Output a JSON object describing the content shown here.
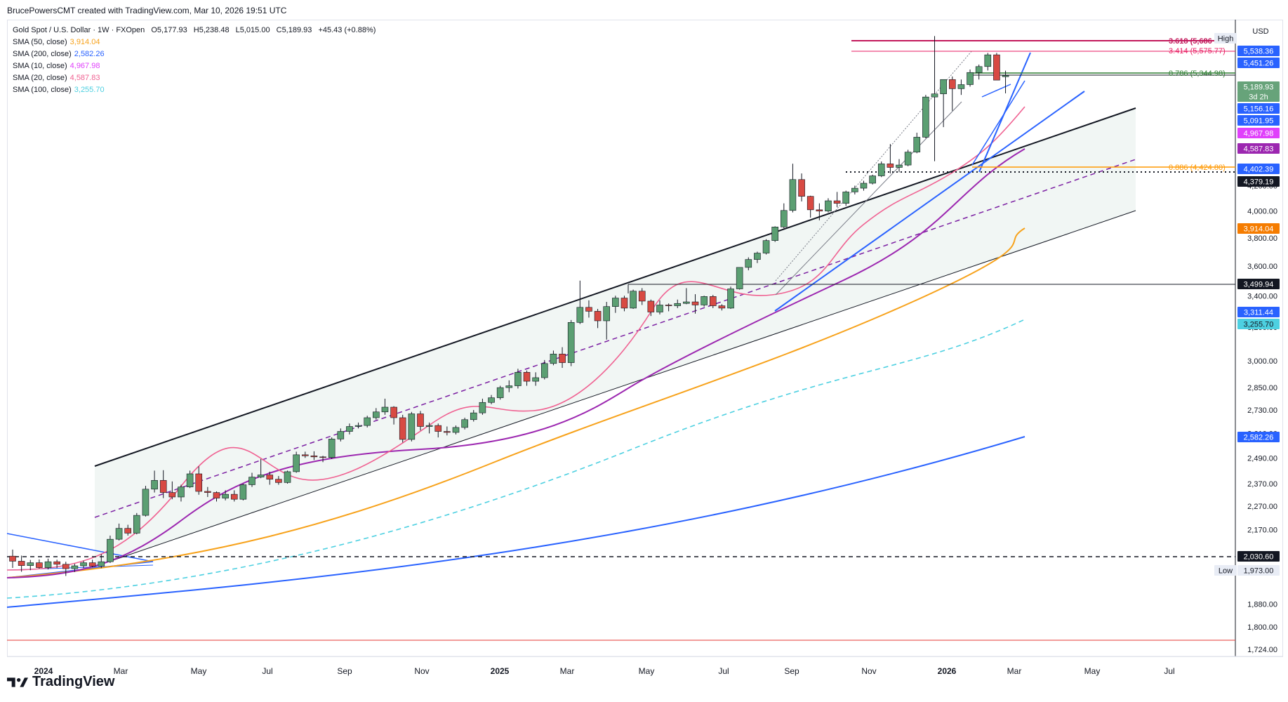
{
  "header": {
    "credit": "BrucePowersCMT created with TradingView.com, Mar 10, 2026 19:51 UTC"
  },
  "legend": {
    "symbol": "Gold Spot / U.S. Dollar · 1W · FXOpen",
    "ohlc": {
      "o": "O5,177.93",
      "h": "H5,238.48",
      "l": "L5,015.00",
      "c": "C5,189.93",
      "chg": "+45.43 (+0.88%)"
    },
    "sma": [
      {
        "label": "SMA (50, close)",
        "value": "3,914.04",
        "color": "#f7a21b"
      },
      {
        "label": "SMA (200, close)",
        "value": "2,582.26",
        "color": "#2962ff"
      },
      {
        "label": "SMA (10, close)",
        "value": "4,967.98",
        "color": "#e040fb"
      },
      {
        "label": "SMA (20, close)",
        "value": "4,587.83",
        "color": "#f06292"
      },
      {
        "label": "SMA (100, close)",
        "value": "3,255.70",
        "color": "#4dd0e1"
      }
    ]
  },
  "brand": {
    "name": "TradingView"
  },
  "chart_data": {
    "type": "candlestick",
    "title": "Gold Spot / U.S. Dollar",
    "timeframe": "1W",
    "currency": "USD",
    "y_scale": "log",
    "ylim": [
      1724,
      5700
    ],
    "y_ticks": [
      1724,
      1800,
      1880,
      1973,
      2070,
      2170,
      2270,
      2370,
      2490,
      2610,
      2730,
      2850,
      3000,
      3200,
      3400,
      3600,
      3800,
      4000,
      4200
    ],
    "y_tick_labels": [
      "1,724.00",
      "1,800.00",
      "1,880.00",
      "",
      "2,070.00",
      "2,170.00",
      "2,270.00",
      "2,370.00",
      "2,490.00",
      "2,610.00",
      "2,730.00",
      "2,850.00",
      "3,000.00",
      "3,200.00",
      "3,400.00",
      "3,600.00",
      "3,800.00",
      "4,000.00",
      "4,200.00"
    ],
    "x_labels": [
      "2024",
      "Mar",
      "May",
      "Jul",
      "Sep",
      "Nov",
      "2025",
      "Mar",
      "May",
      "Jul",
      "Sep",
      "Nov",
      "2026",
      "Mar",
      "May",
      "Jul"
    ],
    "bold_x_labels": [
      "2024",
      "2025",
      "2026"
    ],
    "candles_ohlc": [
      [
        2062,
        2088,
        2016,
        2042
      ],
      [
        2042,
        2064,
        2001,
        2025
      ],
      [
        2025,
        2047,
        2007,
        2036
      ],
      [
        2036,
        2049,
        2013,
        2017
      ],
      [
        2017,
        2052,
        2010,
        2040
      ],
      [
        2040,
        2048,
        2015,
        2030
      ],
      [
        2030,
        2040,
        1985,
        2013
      ],
      [
        2013,
        2032,
        2000,
        2024
      ],
      [
        2024,
        2044,
        2015,
        2036
      ],
      [
        2036,
        2048,
        2018,
        2023
      ],
      [
        2023,
        2070,
        2015,
        2040
      ],
      [
        2040,
        2145,
        2035,
        2130
      ],
      [
        2130,
        2195,
        2125,
        2175
      ],
      [
        2175,
        2190,
        2145,
        2155
      ],
      [
        2155,
        2240,
        2150,
        2230
      ],
      [
        2230,
        2360,
        2225,
        2345
      ],
      [
        2345,
        2430,
        2330,
        2385
      ],
      [
        2385,
        2432,
        2305,
        2330
      ],
      [
        2330,
        2380,
        2300,
        2310
      ],
      [
        2310,
        2365,
        2290,
        2355
      ],
      [
        2355,
        2430,
        2350,
        2415
      ],
      [
        2415,
        2450,
        2320,
        2335
      ],
      [
        2335,
        2355,
        2310,
        2330
      ],
      [
        2330,
        2335,
        2290,
        2305
      ],
      [
        2305,
        2340,
        2295,
        2322
      ],
      [
        2322,
        2340,
        2290,
        2300
      ],
      [
        2300,
        2370,
        2295,
        2365
      ],
      [
        2365,
        2420,
        2355,
        2400
      ],
      [
        2400,
        2485,
        2395,
        2410
      ],
      [
        2410,
        2425,
        2365,
        2390
      ],
      [
        2390,
        2405,
        2365,
        2375
      ],
      [
        2375,
        2430,
        2370,
        2425
      ],
      [
        2425,
        2520,
        2420,
        2505
      ],
      [
        2505,
        2520,
        2490,
        2500
      ],
      [
        2500,
        2522,
        2480,
        2495
      ],
      [
        2495,
        2500,
        2470,
        2492
      ],
      [
        2492,
        2590,
        2485,
        2582
      ],
      [
        2582,
        2635,
        2570,
        2620
      ],
      [
        2620,
        2660,
        2605,
        2645
      ],
      [
        2645,
        2665,
        2635,
        2650
      ],
      [
        2650,
        2700,
        2640,
        2690
      ],
      [
        2690,
        2740,
        2680,
        2720
      ],
      [
        2720,
        2790,
        2705,
        2745
      ],
      [
        2745,
        2750,
        2655,
        2690
      ],
      [
        2690,
        2705,
        2565,
        2580
      ],
      [
        2580,
        2720,
        2570,
        2710
      ],
      [
        2710,
        2725,
        2625,
        2645
      ],
      [
        2645,
        2665,
        2610,
        2650
      ],
      [
        2650,
        2660,
        2590,
        2620
      ],
      [
        2620,
        2645,
        2600,
        2615
      ],
      [
        2615,
        2650,
        2605,
        2640
      ],
      [
        2640,
        2690,
        2630,
        2680
      ],
      [
        2680,
        2730,
        2670,
        2715
      ],
      [
        2715,
        2790,
        2705,
        2770
      ],
      [
        2770,
        2810,
        2760,
        2795
      ],
      [
        2795,
        2860,
        2785,
        2850
      ],
      [
        2850,
        2890,
        2825,
        2860
      ],
      [
        2860,
        2955,
        2845,
        2935
      ],
      [
        2935,
        2945,
        2860,
        2885
      ],
      [
        2885,
        2935,
        2860,
        2905
      ],
      [
        2905,
        3005,
        2895,
        2985
      ],
      [
        2985,
        3060,
        2975,
        3040
      ],
      [
        3040,
        3080,
        2960,
        2990
      ],
      [
        2990,
        3245,
        2970,
        3230
      ],
      [
        3230,
        3500,
        3220,
        3325
      ],
      [
        3325,
        3370,
        3260,
        3300
      ],
      [
        3300,
        3315,
        3195,
        3240
      ],
      [
        3240,
        3360,
        3125,
        3330
      ],
      [
        3330,
        3400,
        3290,
        3385
      ],
      [
        3385,
        3400,
        3300,
        3320
      ],
      [
        3320,
        3440,
        3315,
        3430
      ],
      [
        3430,
        3450,
        3340,
        3365
      ],
      [
        3365,
        3375,
        3270,
        3295
      ],
      [
        3295,
        3370,
        3280,
        3340
      ],
      [
        3340,
        3350,
        3300,
        3335
      ],
      [
        3335,
        3375,
        3320,
        3350
      ],
      [
        3350,
        3450,
        3345,
        3360
      ],
      [
        3360,
        3410,
        3285,
        3340
      ],
      [
        3340,
        3400,
        3330,
        3395
      ],
      [
        3395,
        3405,
        3320,
        3335
      ],
      [
        3335,
        3345,
        3305,
        3320
      ],
      [
        3320,
        3460,
        3315,
        3445
      ],
      [
        3445,
        3580,
        3440,
        3590
      ],
      [
        3590,
        3660,
        3570,
        3645
      ],
      [
        3645,
        3700,
        3620,
        3690
      ],
      [
        3690,
        3790,
        3680,
        3780
      ],
      [
        3780,
        3885,
        3770,
        3880
      ],
      [
        3880,
        4060,
        3870,
        4005
      ],
      [
        4005,
        4381,
        3990,
        4250
      ],
      [
        4250,
        4300,
        4075,
        4115
      ],
      [
        4115,
        4120,
        3950,
        4010
      ],
      [
        4010,
        4060,
        3930,
        4000
      ],
      [
        4000,
        4100,
        3990,
        4080
      ],
      [
        4080,
        4150,
        4030,
        4060
      ],
      [
        4060,
        4160,
        4040,
        4150
      ],
      [
        4150,
        4200,
        4130,
        4180
      ],
      [
        4180,
        4240,
        4160,
        4220
      ],
      [
        4220,
        4290,
        4210,
        4280
      ],
      [
        4280,
        4400,
        4270,
        4380
      ],
      [
        4380,
        4550,
        4300,
        4350
      ],
      [
        4350,
        4420,
        4310,
        4370
      ],
      [
        4370,
        4500,
        4360,
        4480
      ],
      [
        4480,
        4650,
        4470,
        4610
      ],
      [
        4610,
        5000,
        4600,
        4980
      ],
      [
        4980,
        5598,
        4402,
        5010
      ],
      [
        5010,
        5100,
        4700,
        5150
      ],
      [
        5150,
        5180,
        4850,
        5060
      ],
      [
        5060,
        5150,
        5000,
        5100
      ],
      [
        5100,
        5250,
        5080,
        5220
      ],
      [
        5220,
        5300,
        5150,
        5280
      ],
      [
        5280,
        5420,
        5240,
        5400
      ],
      [
        5400,
        5420,
        5180,
        5144
      ],
      [
        5177.93,
        5238.48,
        5015,
        5189.93
      ]
    ],
    "series": [
      {
        "name": "SMA (10, close)",
        "last": 4967.98
      },
      {
        "name": "SMA (20, close)",
        "last": 4587.83
      },
      {
        "name": "SMA (50, close)",
        "last": 3914.04
      },
      {
        "name": "SMA (100, close)",
        "last": 3255.7
      },
      {
        "name": "SMA (200, close)",
        "last": 2582.26
      }
    ],
    "horizontal_levels": [
      {
        "value": 5686,
        "label": "3.618 (5,686",
        "color": "#c2185b"
      },
      {
        "value": 5575.77,
        "label": "3.414 (5,575.77)",
        "color": "#e91e63"
      },
      {
        "value": 5344.98,
        "label": "0.786 (5,344.98)",
        "color": "#2e7d32"
      },
      {
        "value": 4424.8,
        "label": "0.886 (4,424.80)",
        "color": "#ff9800"
      },
      {
        "value": 4379.19,
        "label": "",
        "color": "#131722"
      },
      {
        "value": 3499.94,
        "label": "",
        "color": "#131722"
      },
      {
        "value": 2030.6,
        "label": "",
        "color": "#131722"
      }
    ],
    "price_tags": [
      {
        "text": "High",
        "bg": "#e8ecf5",
        "fg": "#131722"
      },
      {
        "text": "5,538.36",
        "bg": "#2962ff",
        "fg": "#ffffff"
      },
      {
        "text": "5,451.26",
        "bg": "#2962ff",
        "fg": "#ffffff"
      },
      {
        "text": "5,189.93",
        "bg": "#67a37a",
        "fg": "#ffffff"
      },
      {
        "text": "3d 2h",
        "bg": "#67a37a",
        "fg": "#ffffff"
      },
      {
        "text": "5,156.16",
        "bg": "#2962ff",
        "fg": "#ffffff"
      },
      {
        "text": "5,091.95",
        "bg": "#2962ff",
        "fg": "#ffffff"
      },
      {
        "text": "4,967.98",
        "bg": "#e040fb",
        "fg": "#ffffff"
      },
      {
        "text": "4,587.83",
        "bg": "#9c27b0",
        "fg": "#ffffff"
      },
      {
        "text": "4,402.39",
        "bg": "#2962ff",
        "fg": "#ffffff"
      },
      {
        "text": "4,379.19",
        "bg": "#131722",
        "fg": "#ffffff"
      },
      {
        "text": "3,914.04",
        "bg": "#f57c00",
        "fg": "#ffffff"
      },
      {
        "text": "3,499.94",
        "bg": "#131722",
        "fg": "#ffffff"
      },
      {
        "text": "3,311.44",
        "bg": "#2962ff",
        "fg": "#ffffff"
      },
      {
        "text": "3,255.70",
        "bg": "#4dd0e1",
        "fg": "#131722"
      },
      {
        "text": "2,582.26",
        "bg": "#2962ff",
        "fg": "#ffffff"
      },
      {
        "text": "2,030.60",
        "bg": "#131722",
        "fg": "#ffffff"
      },
      {
        "text": "1,973.00",
        "bg": "#e8ecf5",
        "fg": "#131722"
      },
      {
        "text": "Low",
        "bg": "#e8ecf5",
        "fg": "#131722"
      }
    ],
    "colors": {
      "up": "#5b9f72",
      "down": "#d84a43",
      "channel_fill": "#eef4f2"
    }
  }
}
